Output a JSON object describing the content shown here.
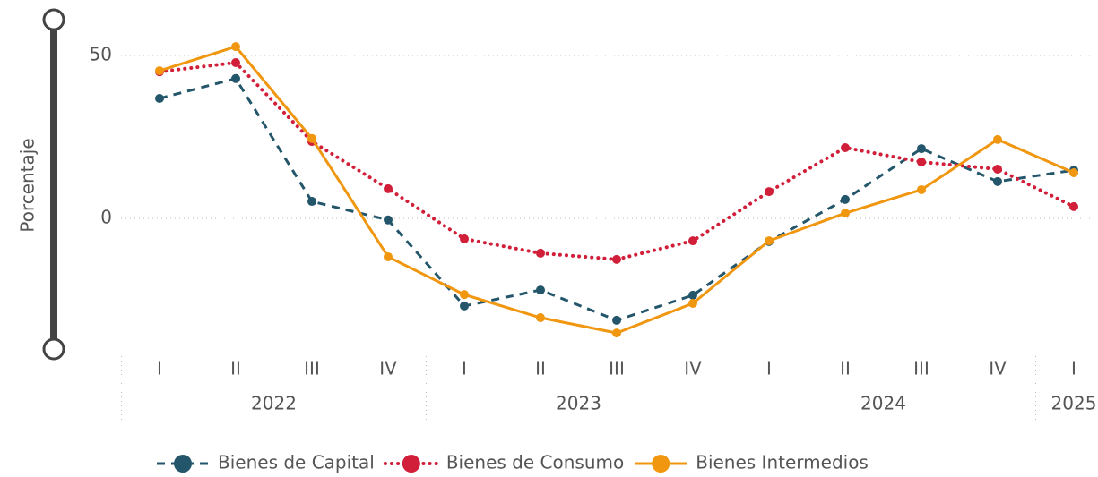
{
  "chart_data": {
    "type": "line",
    "y_label": "Porcentaje",
    "categories": [
      "I",
      "II",
      "III",
      "IV",
      "I",
      "II",
      "III",
      "IV",
      "I",
      "II",
      "III",
      "IV",
      "I"
    ],
    "x_groups": [
      "2022",
      "2023",
      "2024",
      "2025"
    ],
    "series": [
      {
        "name": "Bienes de Capital",
        "color": "#23566a",
        "dash": "dashed",
        "values": [
          36.8,
          42.9,
          5.2,
          -0.5,
          -26.9,
          -22,
          -31.3,
          -23.6,
          -7.1,
          5.8,
          21.4,
          11.3,
          14.8
        ]
      },
      {
        "name": "Bienes de Consumo",
        "color": "#d11f3a",
        "dash": "dotted",
        "values": [
          45,
          47.8,
          23.6,
          9.1,
          -6.3,
          -10.7,
          -12.6,
          -6.9,
          8.2,
          21.7,
          17.3,
          15.1,
          3.6
        ]
      },
      {
        "name": "Bienes Intermedios",
        "color": "#f0960f",
        "dash": "solid",
        "values": [
          45.3,
          52.7,
          24.5,
          -11.8,
          -23.4,
          -30.5,
          -35.2,
          -26.1,
          -6.9,
          1.6,
          8.8,
          24.2,
          14
        ]
      }
    ],
    "ylim": [
      -40,
      61.5
    ],
    "yticks": [
      0,
      50
    ],
    "grid": true,
    "legend": "bottom"
  }
}
